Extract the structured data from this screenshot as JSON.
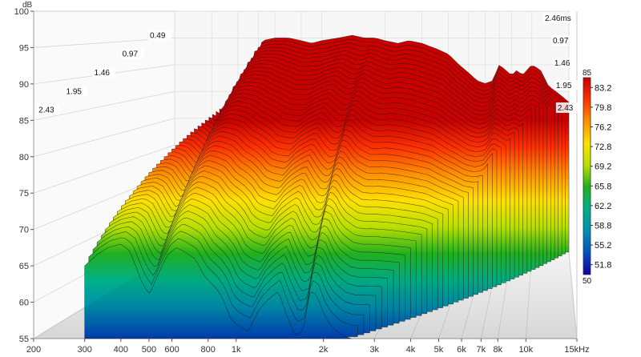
{
  "chart_data": {
    "type": "area",
    "subtype": "waterfall",
    "title": "",
    "xlabel": "",
    "ylabel": "dB",
    "xscale": "log",
    "xlim": [
      200,
      15000
    ],
    "ylim": [
      55,
      100
    ],
    "x_ticks": [
      "200",
      "300",
      "400",
      "500",
      "600",
      "800",
      "1k",
      "2k",
      "3k",
      "4k",
      "5k",
      "6k",
      "7k",
      "8k",
      "10k",
      "15kHz"
    ],
    "x_tick_values": [
      200,
      300,
      400,
      500,
      600,
      800,
      1000,
      2000,
      3000,
      4000,
      5000,
      6000,
      7000,
      8000,
      10000,
      15000
    ],
    "y_ticks": [
      "55",
      "60",
      "65",
      "70",
      "75",
      "80",
      "85",
      "90",
      "95",
      "100"
    ],
    "y_tick_values": [
      55,
      60,
      65,
      70,
      75,
      80,
      85,
      90,
      95,
      100
    ],
    "time_ticks_left": [
      "0.49",
      "0.97",
      "1.46",
      "1.95",
      "2.43"
    ],
    "time_ticks_right": [
      "2.46ms",
      "0.97",
      "1.46",
      "1.95",
      "2.43"
    ],
    "time_max_ms": 2.46,
    "grid": true,
    "colorbar": {
      "max_label": "85",
      "min_label": "50",
      "labels": [
        "83.2",
        "79.8",
        "76.2",
        "72.8",
        "69.2",
        "65.8",
        "62.2",
        "58.8",
        "55.2",
        "51.8"
      ],
      "colors": [
        "#c80000",
        "#ff3000",
        "#ff9000",
        "#ffe000",
        "#b8e000",
        "#20b020",
        "#00b088",
        "#0090b0",
        "#0050c0",
        "#1000a0"
      ]
    },
    "front_slice": {
      "x": [
        300,
        330,
        360,
        400,
        430,
        470,
        500,
        540,
        580,
        620,
        660,
        720,
        780,
        850,
        900,
        950,
        1000,
        1100,
        1200,
        1300,
        1400,
        1500,
        1600,
        1700,
        1800,
        1900,
        2000,
        2100,
        2300,
        2500
      ],
      "y": [
        65,
        66.5,
        67.5,
        68,
        67,
        63,
        61,
        64,
        66.5,
        67.5,
        67,
        66,
        63.5,
        62,
        60.5,
        58,
        57,
        56,
        59,
        60.5,
        61.5,
        58,
        55.5,
        56,
        61.5,
        61,
        58.5,
        57,
        55.5,
        55
      ]
    },
    "back_slice": {
      "x": [
        480,
        520,
        600,
        700,
        800,
        900,
        1000,
        1200,
        1400,
        1600,
        1800,
        2000,
        2300,
        2600,
        3000,
        3500,
        4000,
        4500,
        5000,
        5500,
        6000,
        6500,
        7000,
        7500,
        8000,
        8500,
        9000,
        10000,
        11000,
        12000,
        13000,
        14000,
        15000
      ],
      "y": [
        87,
        94.5,
        95,
        95,
        94.5,
        94,
        94.5,
        95,
        95.5,
        95,
        95,
        94.5,
        94,
        94.5,
        94,
        93,
        92,
        90,
        88.5,
        87,
        86.5,
        87,
        90,
        89,
        88,
        89,
        88,
        90,
        89,
        86,
        85,
        84,
        83
      ]
    }
  }
}
